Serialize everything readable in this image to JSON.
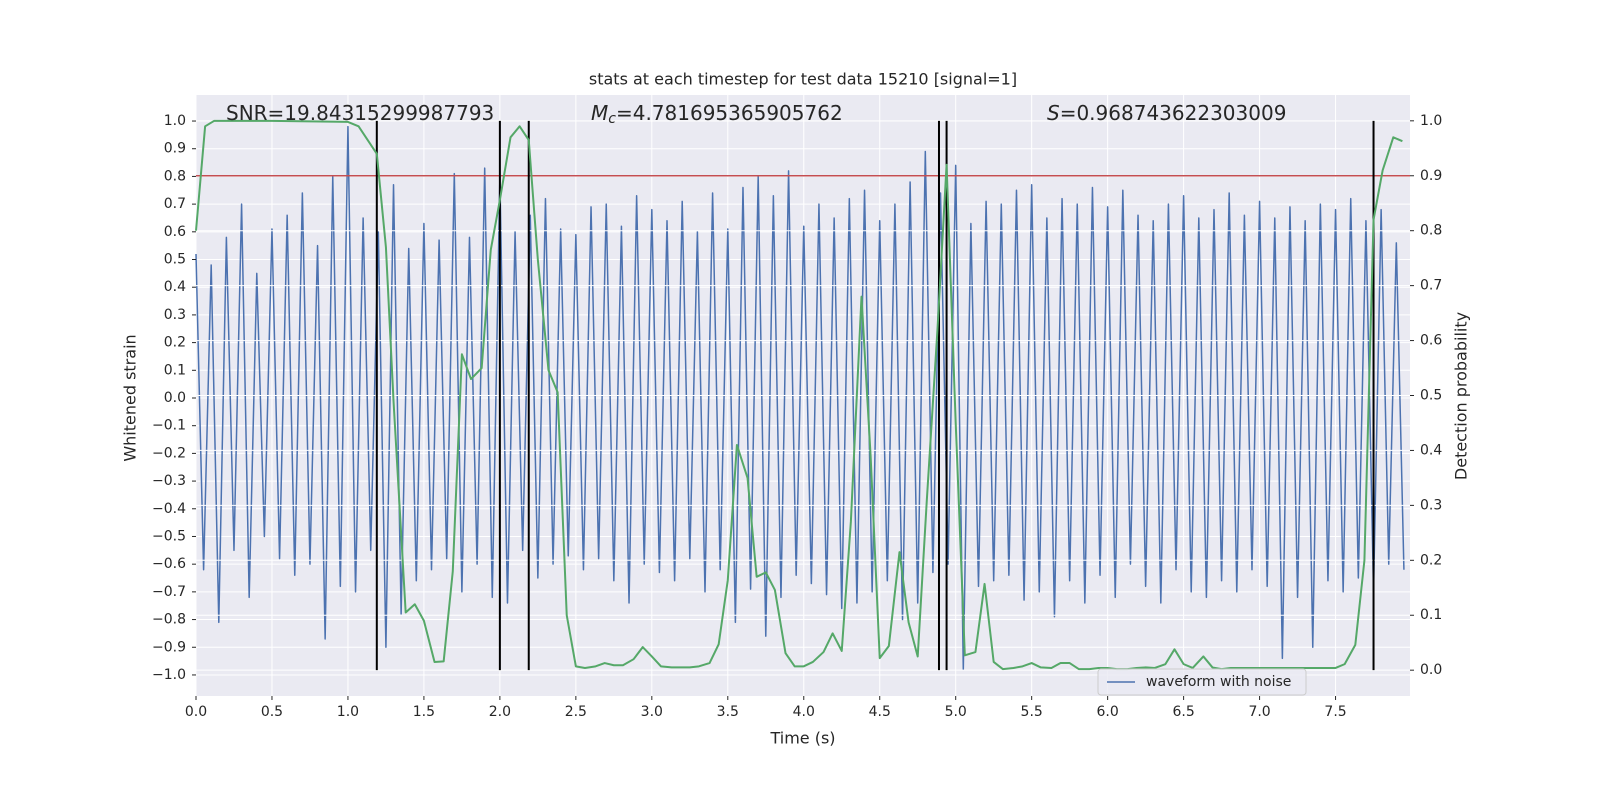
{
  "chart_data": {
    "type": "line",
    "title": "stats at each timestep for test data 15210 [signal=1]",
    "x_label": "Time (s)",
    "y_label": "Whitened strain",
    "y2_label": "Detection probability",
    "annotations": [
      {
        "text": "SNR=19.84315299987793"
      },
      {
        "italic": "M",
        "sub": "c",
        "text": "=4.781695365905762"
      },
      {
        "italic": "S",
        "text": "=0.968743622303009"
      }
    ],
    "xlim": [
      0,
      7.99
    ],
    "ylim": [
      -1.076,
      1.094
    ],
    "y2lim": [
      -0.047,
      1.047
    ],
    "xticks": [
      {
        "value": 0,
        "label": "0.0"
      },
      0.5,
      {
        "value": 1,
        "label": "1.0"
      },
      1.5,
      {
        "value": 2,
        "label": "2.0"
      },
      2.5,
      {
        "value": 3,
        "label": "3.0"
      },
      3.5,
      {
        "value": 4,
        "label": "4.0"
      },
      4.5,
      {
        "value": 5,
        "label": "5.0"
      },
      5.5,
      {
        "value": 6,
        "label": "6.0"
      },
      6.5,
      {
        "value": 7,
        "label": "7.0"
      },
      7.5
    ],
    "yticks": [
      {
        "value": -1,
        "label": "−1.0"
      },
      {
        "value": -0.9,
        "label": "−0.9"
      },
      {
        "value": -0.8,
        "label": "−0.8"
      },
      {
        "value": -0.7,
        "label": "−0.7"
      },
      {
        "value": -0.6,
        "label": "−0.6"
      },
      {
        "value": -0.5,
        "label": "−0.5"
      },
      {
        "value": -0.4,
        "label": "−0.4"
      },
      {
        "value": -0.3,
        "label": "−0.3"
      },
      {
        "value": -0.2,
        "label": "−0.2"
      },
      {
        "value": -0.1,
        "label": "−0.1"
      },
      {
        "value": 0,
        "label": "0.0"
      },
      0.1,
      0.2,
      0.3,
      0.4,
      0.5,
      0.6,
      0.7,
      0.8,
      0.9,
      {
        "value": 1,
        "label": "1.0"
      }
    ],
    "y2ticks": [
      {
        "value": 0,
        "label": "0.0"
      },
      0.1,
      0.2,
      0.3,
      0.4,
      0.5,
      0.6,
      0.7,
      0.8,
      0.9,
      {
        "value": 1,
        "label": "1.0"
      }
    ],
    "grid": true,
    "legend": "lower right",
    "threshold": {
      "value": 0.9,
      "axis": "y2",
      "color": "#c44e52"
    },
    "vlines": {
      "x": [
        1.19,
        2.0,
        2.19,
        4.89,
        4.94,
        7.75
      ],
      "color": "#000000"
    },
    "series": [
      {
        "name": "waveform with noise",
        "color": "#4c72b0",
        "x": [
          0,
          0.05,
          0.1,
          0.15,
          0.2,
          0.25,
          0.3,
          0.35,
          0.4,
          0.45,
          0.5,
          0.55,
          0.6,
          0.65,
          0.7,
          0.75,
          0.8,
          0.85,
          0.9,
          0.95,
          1,
          1.05,
          1.1,
          1.15,
          1.2,
          1.25,
          1.3,
          1.35,
          1.4,
          1.45,
          1.5,
          1.55,
          1.6,
          1.65,
          1.7,
          1.75,
          1.8,
          1.85,
          1.9,
          1.95,
          2,
          2.05,
          2.1,
          2.15,
          2.2,
          2.25,
          2.3,
          2.35,
          2.4,
          2.45,
          2.5,
          2.55,
          2.6,
          2.65,
          2.7,
          2.75,
          2.8,
          2.85,
          2.9,
          2.95,
          3,
          3.05,
          3.1,
          3.15,
          3.2,
          3.25,
          3.3,
          3.35,
          3.4,
          3.45,
          3.5,
          3.55,
          3.6,
          3.65,
          3.7,
          3.75,
          3.8,
          3.85,
          3.9,
          3.95,
          4,
          4.05,
          4.1,
          4.15,
          4.2,
          4.25,
          4.3,
          4.35,
          4.4,
          4.45,
          4.5,
          4.55,
          4.6,
          4.65,
          4.7,
          4.75,
          4.8,
          4.85,
          4.9,
          4.95,
          5,
          5.05,
          5.1,
          5.15,
          5.2,
          5.25,
          5.3,
          5.35,
          5.4,
          5.45,
          5.5,
          5.55,
          5.6,
          5.65,
          5.7,
          5.75,
          5.8,
          5.85,
          5.9,
          5.95,
          6,
          6.05,
          6.1,
          6.15,
          6.2,
          6.25,
          6.3,
          6.35,
          6.4,
          6.45,
          6.5,
          6.55,
          6.6,
          6.65,
          6.7,
          6.75,
          6.8,
          6.85,
          6.9,
          6.95,
          7,
          7.05,
          7.1,
          7.15,
          7.2,
          7.25,
          7.3,
          7.35,
          7.4,
          7.45,
          7.5,
          7.55,
          7.6,
          7.65,
          7.7,
          7.75,
          7.8,
          7.85,
          7.9,
          7.95
        ],
        "values": [
          0.52,
          -0.62,
          0.48,
          -0.81,
          0.58,
          -0.55,
          0.7,
          -0.72,
          0.45,
          -0.5,
          0.61,
          -0.58,
          0.66,
          -0.64,
          0.74,
          -0.6,
          0.55,
          -0.87,
          0.8,
          -0.68,
          0.98,
          -0.7,
          0.65,
          -0.55,
          0.6,
          -0.9,
          0.77,
          -0.78,
          0.54,
          -0.66,
          0.63,
          -0.62,
          0.57,
          -0.58,
          0.81,
          -0.7,
          0.58,
          -0.6,
          0.83,
          -0.72,
          0.8,
          -0.74,
          0.6,
          -0.55,
          0.66,
          -0.65,
          0.72,
          -0.6,
          0.61,
          -0.57,
          0.59,
          -0.62,
          0.69,
          -0.58,
          0.7,
          -0.66,
          0.62,
          -0.74,
          0.73,
          -0.6,
          0.68,
          -0.63,
          0.64,
          -0.66,
          0.71,
          -0.58,
          0.6,
          -0.7,
          0.74,
          -0.62,
          0.61,
          -0.81,
          0.76,
          -0.69,
          0.8,
          -0.86,
          0.73,
          -0.72,
          0.82,
          -0.64,
          0.62,
          -0.67,
          0.7,
          -0.71,
          0.65,
          -0.76,
          0.72,
          -0.74,
          0.75,
          -0.7,
          0.64,
          -0.66,
          0.7,
          -0.8,
          0.78,
          -0.74,
          0.89,
          -0.63,
          0.74,
          -0.6,
          0.84,
          -0.98,
          0.63,
          -0.68,
          0.71,
          -0.66,
          0.7,
          -0.64,
          0.75,
          -0.73,
          0.77,
          -0.7,
          0.65,
          -0.79,
          0.72,
          -0.66,
          0.7,
          -0.74,
          0.76,
          -0.64,
          0.69,
          -0.72,
          0.75,
          -0.6,
          0.66,
          -0.68,
          0.64,
          -0.74,
          0.7,
          -0.62,
          0.73,
          -0.7,
          0.65,
          -0.72,
          0.68,
          -0.66,
          0.74,
          -0.7,
          0.66,
          -0.62,
          0.71,
          -0.68,
          0.65,
          -0.94,
          0.69,
          -0.72,
          0.64,
          -0.9,
          0.7,
          -0.66,
          0.68,
          -0.7,
          0.72,
          -0.65,
          0.64,
          -0.7,
          0.68,
          -0.6,
          0.56,
          -0.62
        ]
      },
      {
        "color": "#55a868",
        "axis": "y2",
        "x": [
          0,
          0.06,
          0.12,
          0.5,
          1.0,
          1.07,
          1.13,
          1.19,
          1.25,
          1.3,
          1.38,
          1.44,
          1.5,
          1.57,
          1.63,
          1.69,
          1.75,
          1.81,
          1.88,
          1.94,
          2.0,
          2.07,
          2.13,
          2.19,
          2.25,
          2.32,
          2.38,
          2.44,
          2.5,
          2.56,
          2.63,
          2.69,
          2.75,
          2.81,
          2.88,
          2.94,
          3.0,
          3.06,
          3.13,
          3.19,
          3.25,
          3.31,
          3.38,
          3.44,
          3.5,
          3.56,
          3.63,
          3.69,
          3.75,
          3.81,
          3.88,
          3.94,
          4.0,
          4.06,
          4.13,
          4.19,
          4.25,
          4.31,
          4.38,
          4.44,
          4.5,
          4.56,
          4.63,
          4.69,
          4.75,
          4.81,
          4.88,
          4.94,
          5.0,
          5.06,
          5.13,
          5.19,
          5.25,
          5.31,
          5.38,
          5.44,
          5.5,
          5.56,
          5.63,
          5.69,
          5.75,
          5.81,
          5.88,
          5.94,
          6.0,
          6.06,
          6.13,
          6.19,
          6.25,
          6.31,
          6.38,
          6.44,
          6.5,
          6.56,
          6.63,
          6.69,
          6.75,
          6.81,
          7.0,
          7.5,
          7.56,
          7.63,
          7.69,
          7.75,
          7.81,
          7.88,
          7.94
        ],
        "values": [
          0.8,
          0.99,
          1.0,
          1.0,
          0.998,
          0.99,
          0.965,
          0.94,
          0.77,
          0.49,
          0.105,
          0.12,
          0.09,
          0.015,
          0.016,
          0.18,
          0.575,
          0.53,
          0.55,
          0.765,
          0.856,
          0.97,
          0.99,
          0.965,
          0.747,
          0.546,
          0.506,
          0.1,
          0.007,
          0.004,
          0.007,
          0.013,
          0.009,
          0.009,
          0.02,
          0.042,
          0.025,
          0.007,
          0.005,
          0.005,
          0.005,
          0.007,
          0.013,
          0.047,
          0.164,
          0.41,
          0.35,
          0.17,
          0.178,
          0.146,
          0.031,
          0.007,
          0.007,
          0.015,
          0.033,
          0.067,
          0.035,
          0.27,
          0.68,
          0.39,
          0.022,
          0.044,
          0.215,
          0.087,
          0.025,
          0.31,
          0.62,
          0.92,
          0.45,
          0.027,
          0.033,
          0.157,
          0.015,
          0.002,
          0.004,
          0.007,
          0.013,
          0.005,
          0.004,
          0.013,
          0.013,
          0.002,
          0.002,
          0.004,
          0.004,
          0.002,
          0.002,
          0.004,
          0.005,
          0.004,
          0.011,
          0.038,
          0.011,
          0.004,
          0.025,
          0.005,
          0.002,
          0.004,
          0.004,
          0.004,
          0.011,
          0.046,
          0.2,
          0.82,
          0.91,
          0.97,
          0.963
        ]
      }
    ]
  }
}
